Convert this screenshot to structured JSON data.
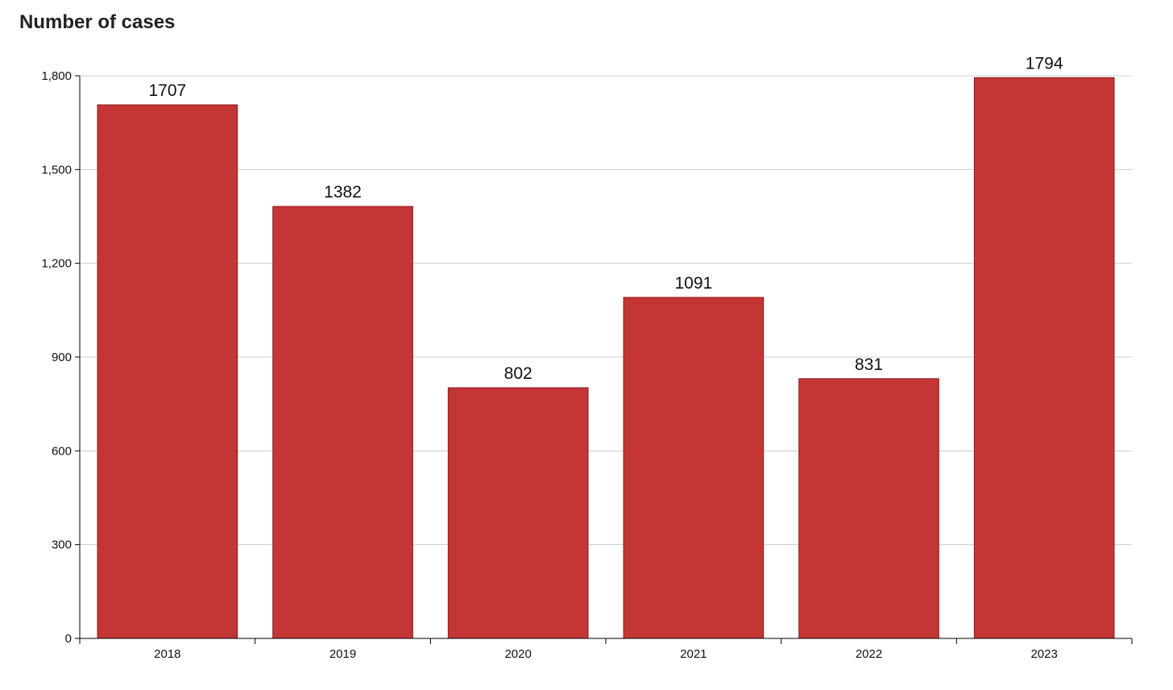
{
  "chart_data": {
    "type": "bar",
    "title": "Number of cases",
    "categories": [
      "2018",
      "2019",
      "2020",
      "2021",
      "2022",
      "2023"
    ],
    "values": [
      1707,
      1382,
      802,
      1091,
      831,
      1794
    ],
    "data_labels": [
      "1707",
      "1382",
      "802",
      "1091",
      "831",
      "1794"
    ],
    "yticks": [
      0,
      300,
      600,
      900,
      1200,
      1500,
      1800
    ],
    "ytick_labels": [
      "0",
      "300",
      "600",
      "900",
      "1,200",
      "1,500",
      "1,800"
    ],
    "ylim": [
      0,
      1800
    ],
    "grid": true,
    "bar_color": "#c43535",
    "bar_stroke": "#8c1c1c",
    "grid_color": "#cccccc",
    "axis_color": "#000000"
  }
}
